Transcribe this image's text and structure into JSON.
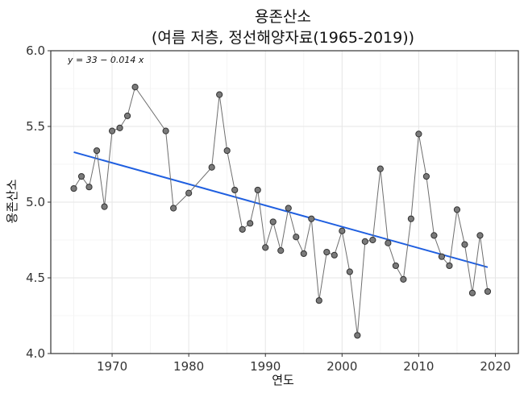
{
  "chart_data": {
    "type": "line",
    "title_line1": "용존산소",
    "title_line2": "(여름 저층, 정선해양자료(1965-2019))",
    "xlabel": "연도",
    "ylabel": "용존산소",
    "xlim": [
      1962,
      2023
    ],
    "ylim": [
      4.0,
      6.0
    ],
    "x_ticks": [
      1970,
      1980,
      1990,
      2000,
      2010,
      2020
    ],
    "y_ticks": [
      4.0,
      4.5,
      5.0,
      5.5,
      6.0
    ],
    "y_tick_labels": [
      "4.0",
      "4.5",
      "5.0",
      "5.5",
      "6.0"
    ],
    "grid": true,
    "series": [
      {
        "x": [
          1965,
          1966,
          1967,
          1968,
          1969,
          1970,
          1971,
          1972,
          1973,
          1977,
          1978,
          1980,
          1983,
          1984,
          1985,
          1986,
          1987,
          1988,
          1989,
          1990,
          1991,
          1992,
          1993,
          1994,
          1995,
          1996,
          1997,
          1998,
          1999,
          2000,
          2001,
          2002,
          2003,
          2004,
          2005,
          2006,
          2007,
          2008,
          2009,
          2010,
          2011,
          2012,
          2013,
          2014,
          2015,
          2016,
          2017,
          2018,
          2019
        ],
        "y": [
          5.09,
          5.17,
          5.1,
          5.34,
          4.97,
          5.47,
          5.49,
          5.57,
          5.76,
          5.47,
          4.96,
          5.06,
          5.23,
          5.71,
          5.34,
          5.08,
          4.82,
          4.86,
          5.08,
          4.7,
          4.87,
          4.68,
          4.96,
          4.77,
          4.66,
          4.89,
          4.35,
          4.67,
          4.65,
          4.81,
          4.54,
          4.12,
          4.74,
          4.75,
          5.22,
          4.73,
          4.58,
          4.49,
          4.89,
          5.45,
          5.17,
          4.78,
          4.64,
          4.58,
          4.95,
          4.72,
          4.4,
          4.78,
          4.41
        ]
      }
    ],
    "trend": {
      "equation_label": "y = 33 − 0.014 x",
      "x_range": [
        1965,
        2019
      ],
      "intercept": 33,
      "slope": -0.014,
      "y_at_start": 5.33,
      "y_at_end": 4.57,
      "color": "#1f5fe0"
    },
    "colors": {
      "points": "#7a7a7a",
      "line": "#6e6e6e"
    }
  }
}
